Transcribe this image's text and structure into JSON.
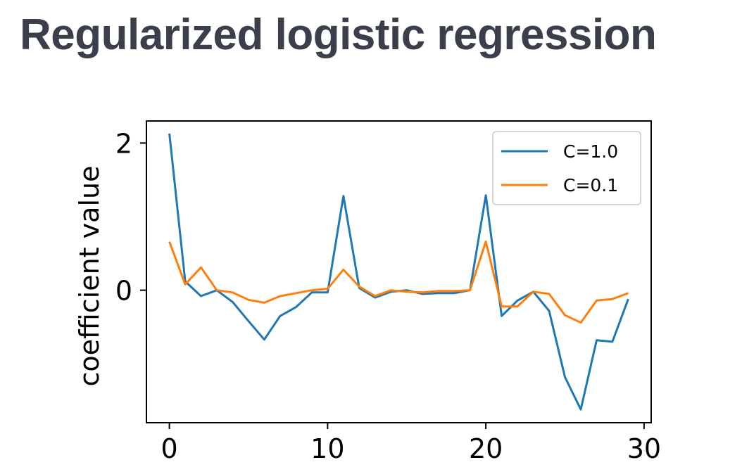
{
  "title": "Regularized logistic regression",
  "chart_data": {
    "type": "line",
    "ylabel": "coefficient value",
    "xlim": [
      -1.45,
      30.45
    ],
    "ylim": [
      -1.8,
      2.3
    ],
    "xticks": [
      0,
      10,
      20,
      30
    ],
    "yticks": [
      0,
      2
    ],
    "legend_position": "top-right",
    "x": [
      0,
      1,
      2,
      3,
      4,
      5,
      6,
      7,
      8,
      9,
      10,
      11,
      12,
      13,
      14,
      15,
      16,
      17,
      18,
      19,
      20,
      21,
      22,
      23,
      24,
      25,
      26,
      27,
      28,
      29
    ],
    "series": [
      {
        "name": "C=1.0",
        "color": "#1f77b4",
        "values": [
          2.13,
          0.12,
          -0.08,
          0.0,
          -0.16,
          -0.42,
          -0.67,
          -0.35,
          -0.23,
          -0.03,
          -0.03,
          1.28,
          0.03,
          -0.1,
          -0.02,
          0.0,
          -0.05,
          -0.04,
          -0.04,
          -0.0,
          1.29,
          -0.35,
          -0.14,
          -0.02,
          -0.28,
          -1.18,
          -1.62,
          -0.68,
          -0.7,
          -0.12
        ]
      },
      {
        "name": "C=0.1",
        "color": "#ff7f0e",
        "values": [
          0.66,
          0.08,
          0.31,
          0.0,
          -0.03,
          -0.13,
          -0.17,
          -0.08,
          -0.04,
          0.0,
          0.02,
          0.28,
          0.05,
          -0.08,
          0.0,
          -0.02,
          -0.03,
          -0.01,
          -0.01,
          0.0,
          0.66,
          -0.22,
          -0.22,
          -0.02,
          -0.05,
          -0.34,
          -0.44,
          -0.14,
          -0.12,
          -0.04
        ]
      }
    ]
  }
}
